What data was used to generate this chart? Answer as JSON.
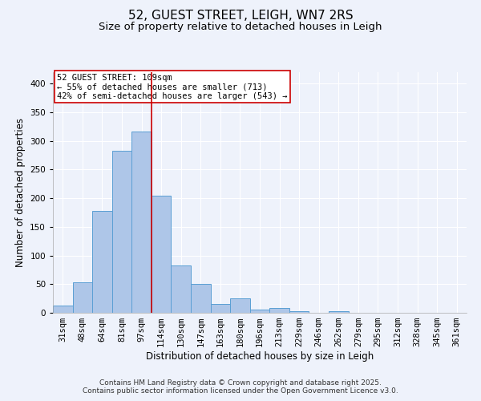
{
  "title": "52, GUEST STREET, LEIGH, WN7 2RS",
  "subtitle": "Size of property relative to detached houses in Leigh",
  "xlabel": "Distribution of detached houses by size in Leigh",
  "ylabel": "Number of detached properties",
  "categories": [
    "31sqm",
    "48sqm",
    "64sqm",
    "81sqm",
    "97sqm",
    "114sqm",
    "130sqm",
    "147sqm",
    "163sqm",
    "180sqm",
    "196sqm",
    "213sqm",
    "229sqm",
    "246sqm",
    "262sqm",
    "279sqm",
    "295sqm",
    "312sqm",
    "328sqm",
    "345sqm",
    "361sqm"
  ],
  "bar_values": [
    13,
    53,
    178,
    283,
    317,
    204,
    83,
    51,
    16,
    25,
    5,
    8,
    3,
    0,
    3,
    0,
    0,
    0,
    0,
    0,
    0
  ],
  "bar_color": "#aec6e8",
  "bar_edge_color": "#5a9fd4",
  "ylim": [
    0,
    420
  ],
  "yticks": [
    0,
    50,
    100,
    150,
    200,
    250,
    300,
    350,
    400
  ],
  "vline_x": 4.5,
  "vline_color": "#cc0000",
  "annotation_line1": "52 GUEST STREET: 109sqm",
  "annotation_line2": "← 55% of detached houses are smaller (713)",
  "annotation_line3": "42% of semi-detached houses are larger (543) →",
  "annotation_box_color": "#cc0000",
  "annotation_box_facecolor": "white",
  "footer_line1": "Contains HM Land Registry data © Crown copyright and database right 2025.",
  "footer_line2": "Contains public sector information licensed under the Open Government Licence v3.0.",
  "background_color": "#eef2fb",
  "grid_color": "white",
  "title_fontsize": 11,
  "subtitle_fontsize": 9.5,
  "axis_label_fontsize": 8.5,
  "tick_fontsize": 7.5,
  "annotation_fontsize": 7.5,
  "footer_fontsize": 6.5
}
